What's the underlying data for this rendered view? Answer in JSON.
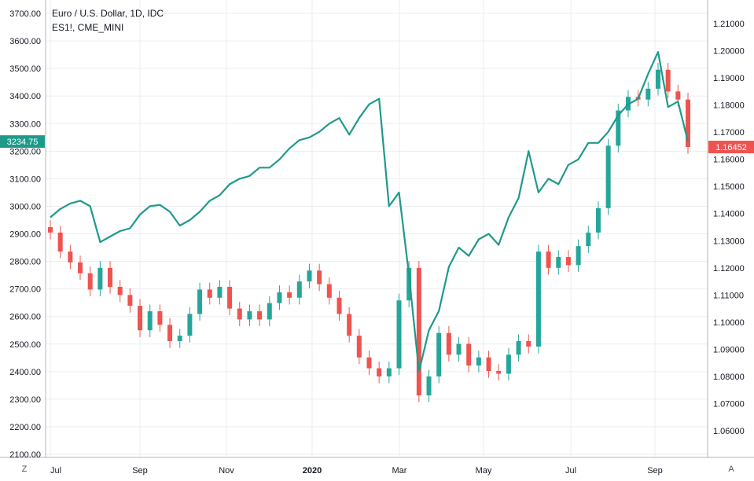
{
  "chart_data": {
    "type": "line",
    "title": "Euro / U.S. Dollar, 1D, IDC",
    "subtitle": "ES1!, CME_MINI",
    "x_tick_labels": [
      "Jul",
      "Sep",
      "Nov",
      "2020",
      "Mar",
      "May",
      "Jul",
      "Sep"
    ],
    "left_axis": {
      "ticks": [
        "3700.00",
        "3600.00",
        "3500.00",
        "3400.00",
        "3300.00",
        "3200.00",
        "3100.00",
        "3000.00",
        "2900.00",
        "2800.00",
        "2700.00",
        "2600.00",
        "2500.00",
        "2400.00",
        "2300.00",
        "2200.00",
        "2100.00"
      ],
      "range": [
        2100,
        3700
      ]
    },
    "right_axis": {
      "ticks": [
        "1.21000",
        "1.20000",
        "1.19000",
        "1.18000",
        "1.17000",
        "1.16000",
        "1.15000",
        "1.14000",
        "1.13000",
        "1.12000",
        "1.11000",
        "1.10000",
        "1.09000",
        "1.08000",
        "1.07000",
        "1.06000"
      ],
      "range": [
        1.06,
        1.21
      ]
    },
    "last_values": {
      "es": "3234.75",
      "eurusd": "1.16452"
    },
    "grid": true,
    "series": [
      {
        "name": "ES1!, CME_MINI",
        "axis": "left",
        "color": "#1f9a8a",
        "x": [
          "2019-07-01",
          "2019-07-08",
          "2019-07-15",
          "2019-07-22",
          "2019-07-29",
          "2019-08-05",
          "2019-08-12",
          "2019-08-19",
          "2019-08-26",
          "2019-09-02",
          "2019-09-09",
          "2019-09-16",
          "2019-09-23",
          "2019-09-30",
          "2019-10-07",
          "2019-10-14",
          "2019-10-21",
          "2019-10-28",
          "2019-11-04",
          "2019-11-11",
          "2019-11-18",
          "2019-11-25",
          "2019-12-02",
          "2019-12-09",
          "2019-12-16",
          "2019-12-23",
          "2019-12-30",
          "2020-01-06",
          "2020-01-13",
          "2020-01-20",
          "2020-01-27",
          "2020-02-03",
          "2020-02-10",
          "2020-02-17",
          "2020-02-24",
          "2020-03-02",
          "2020-03-09",
          "2020-03-16",
          "2020-03-23",
          "2020-03-30",
          "2020-04-06",
          "2020-04-13",
          "2020-04-20",
          "2020-04-27",
          "2020-05-04",
          "2020-05-11",
          "2020-05-18",
          "2020-05-25",
          "2020-06-01",
          "2020-06-08",
          "2020-06-15",
          "2020-06-22",
          "2020-06-29",
          "2020-07-06",
          "2020-07-13",
          "2020-07-20",
          "2020-07-27",
          "2020-08-03",
          "2020-08-10",
          "2020-08-17",
          "2020-08-24",
          "2020-08-31",
          "2020-09-07",
          "2020-09-14",
          "2020-09-21"
        ],
        "values": [
          2960,
          2990,
          3010,
          3020,
          3000,
          2870,
          2890,
          2910,
          2920,
          2970,
          3000,
          3005,
          2980,
          2930,
          2950,
          2980,
          3020,
          3040,
          3080,
          3100,
          3110,
          3140,
          3140,
          3170,
          3210,
          3240,
          3250,
          3270,
          3300,
          3320,
          3260,
          3320,
          3370,
          3390,
          3000,
          3050,
          2750,
          2400,
          2550,
          2620,
          2780,
          2850,
          2820,
          2880,
          2900,
          2860,
          2960,
          3030,
          3200,
          3050,
          3100,
          3080,
          3150,
          3170,
          3230,
          3230,
          3270,
          3330,
          3370,
          3390,
          3480,
          3560,
          3360,
          3380,
          3234.75
        ]
      },
      {
        "name": "Euro / U.S. Dollar",
        "axis": "right",
        "color_up": "#26a69a",
        "color_down": "#ef5350",
        "x": [
          "2019-07-01",
          "2019-07-08",
          "2019-07-15",
          "2019-07-22",
          "2019-07-29",
          "2019-08-05",
          "2019-08-12",
          "2019-08-19",
          "2019-08-26",
          "2019-09-02",
          "2019-09-09",
          "2019-09-16",
          "2019-09-23",
          "2019-09-30",
          "2019-10-07",
          "2019-10-14",
          "2019-10-21",
          "2019-10-28",
          "2019-11-04",
          "2019-11-11",
          "2019-11-18",
          "2019-11-25",
          "2019-12-02",
          "2019-12-09",
          "2019-12-16",
          "2019-12-23",
          "2019-12-30",
          "2020-01-06",
          "2020-01-13",
          "2020-01-20",
          "2020-01-27",
          "2020-02-03",
          "2020-02-10",
          "2020-02-17",
          "2020-02-24",
          "2020-03-02",
          "2020-03-09",
          "2020-03-16",
          "2020-03-23",
          "2020-03-30",
          "2020-04-06",
          "2020-04-13",
          "2020-04-20",
          "2020-04-27",
          "2020-05-04",
          "2020-05-11",
          "2020-05-18",
          "2020-05-25",
          "2020-06-01",
          "2020-06-08",
          "2020-06-15",
          "2020-06-22",
          "2020-06-29",
          "2020-07-06",
          "2020-07-13",
          "2020-07-20",
          "2020-07-27",
          "2020-08-03",
          "2020-08-10",
          "2020-08-17",
          "2020-08-24",
          "2020-08-31",
          "2020-09-07",
          "2020-09-14",
          "2020-09-21"
        ],
        "values": [
          1.133,
          1.126,
          1.122,
          1.118,
          1.112,
          1.12,
          1.113,
          1.11,
          1.106,
          1.097,
          1.104,
          1.099,
          1.093,
          1.095,
          1.103,
          1.112,
          1.109,
          1.113,
          1.105,
          1.101,
          1.104,
          1.101,
          1.107,
          1.111,
          1.109,
          1.115,
          1.119,
          1.114,
          1.109,
          1.103,
          1.095,
          1.087,
          1.083,
          1.08,
          1.083,
          1.108,
          1.12,
          1.073,
          1.08,
          1.096,
          1.088,
          1.092,
          1.084,
          1.087,
          1.082,
          1.081,
          1.088,
          1.093,
          1.091,
          1.126,
          1.12,
          1.124,
          1.121,
          1.128,
          1.133,
          1.142,
          1.165,
          1.178,
          1.183,
          1.182,
          1.186,
          1.193,
          1.185,
          1.182,
          1.16452
        ]
      }
    ]
  },
  "ui": {
    "z_label": "Z",
    "a_label": "A",
    "colors": {
      "grid": "#ebedf0",
      "axis_text": "#131722",
      "es_line": "#1f9a8a",
      "up": "#26a69a",
      "down": "#ef5350"
    }
  }
}
